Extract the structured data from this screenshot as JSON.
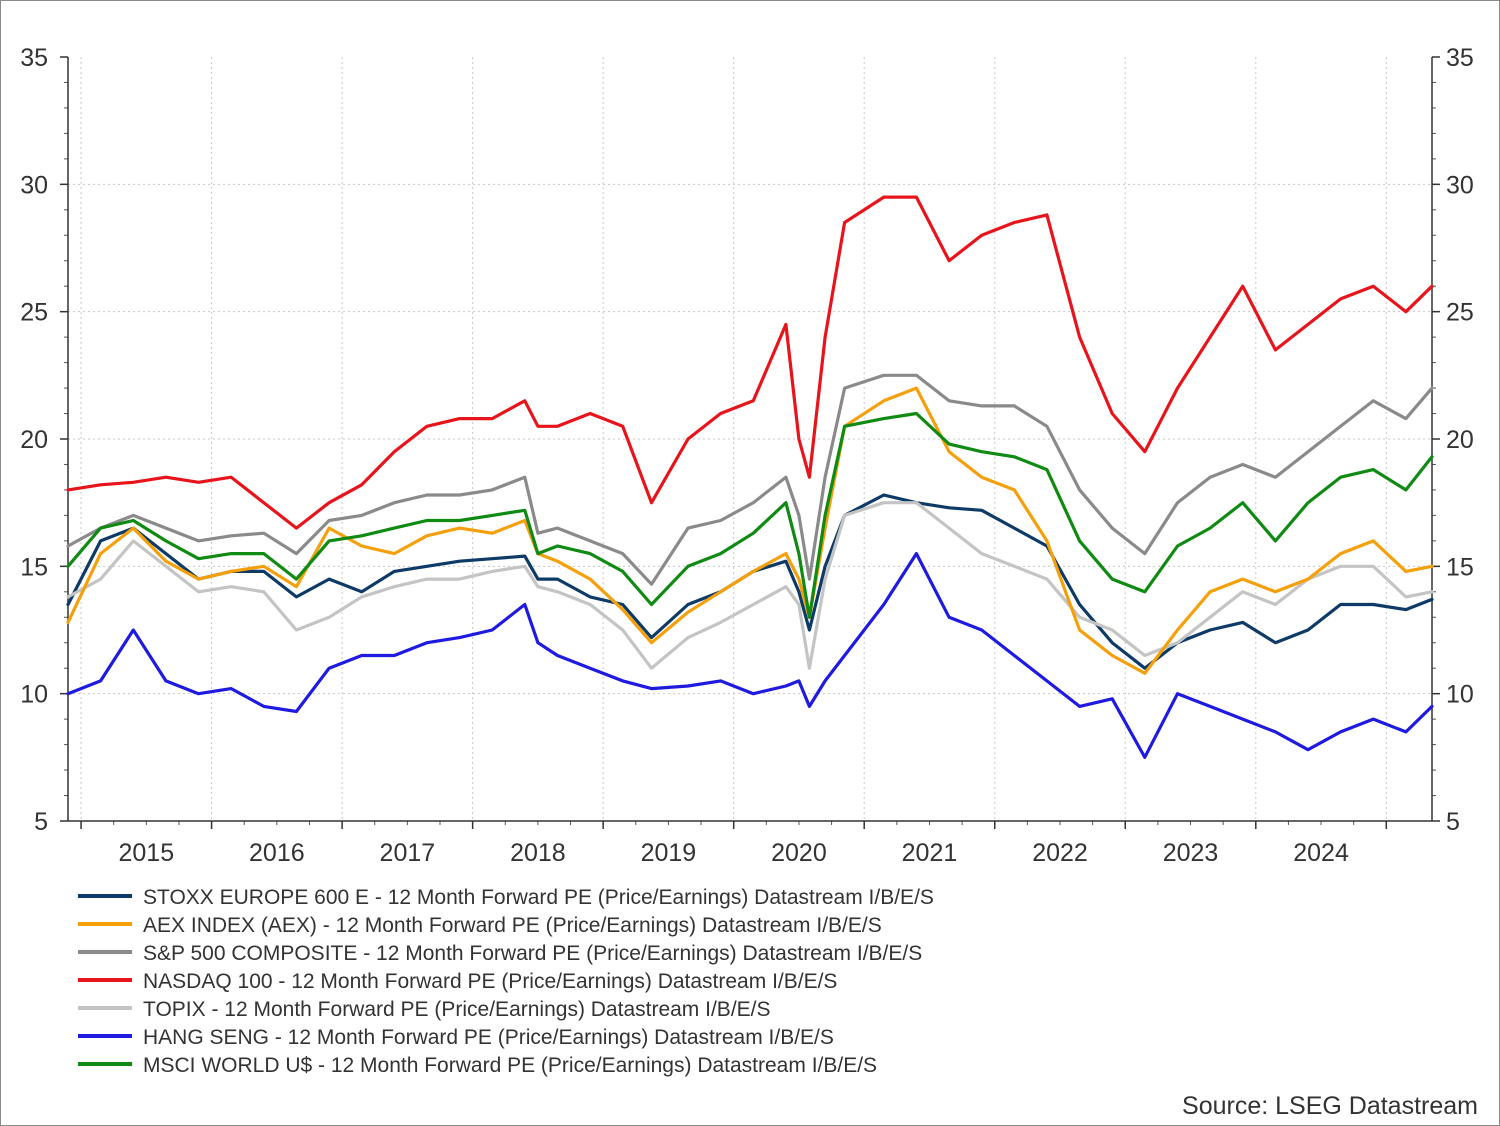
{
  "source_label": "Source: LSEG Datastream",
  "chart_data": {
    "type": "line",
    "title": "",
    "xlabel": "",
    "ylabel": "",
    "x_tick_labels": [
      "2015",
      "2016",
      "2017",
      "2018",
      "2019",
      "2020",
      "2021",
      "2022",
      "2023",
      "2024"
    ],
    "xlim": [
      2014.5,
      2024.95
    ],
    "ylim": [
      5,
      35
    ],
    "y_ticks": [
      5,
      10,
      15,
      20,
      25,
      30,
      35
    ],
    "y_tick_labels": [
      "5",
      "10",
      "15",
      "20",
      "25",
      "30",
      "35"
    ],
    "grid": true,
    "legend_position": "bottom",
    "dual_y_axis": true,
    "x": [
      2014.5,
      2014.75,
      2015.0,
      2015.25,
      2015.5,
      2015.75,
      2016.0,
      2016.25,
      2016.5,
      2016.75,
      2017.0,
      2017.25,
      2017.5,
      2017.75,
      2018.0,
      2018.1,
      2018.25,
      2018.5,
      2018.75,
      2018.97,
      2019.25,
      2019.5,
      2019.75,
      2020.0,
      2020.1,
      2020.18,
      2020.3,
      2020.45,
      2020.75,
      2021.0,
      2021.25,
      2021.5,
      2021.75,
      2022.0,
      2022.25,
      2022.5,
      2022.75,
      2023.0,
      2023.25,
      2023.5,
      2023.75,
      2024.0,
      2024.25,
      2024.5,
      2024.75,
      2024.95
    ],
    "series": [
      {
        "name": "STOXX EUROPE 600 E - 12 Month Forward PE (Price/Earnings) Datastream I/B/E/S",
        "color": "#0d3a66",
        "values": [
          13.5,
          16.0,
          16.5,
          15.5,
          14.5,
          14.8,
          14.8,
          13.8,
          14.5,
          14.0,
          14.8,
          15.0,
          15.2,
          15.3,
          15.4,
          14.5,
          14.5,
          13.8,
          13.5,
          12.2,
          13.5,
          14.0,
          14.8,
          15.2,
          14.0,
          12.5,
          15.0,
          17.0,
          17.8,
          17.5,
          17.3,
          17.2,
          16.5,
          15.8,
          13.5,
          12.0,
          11.0,
          12.0,
          12.5,
          12.8,
          12.0,
          12.5,
          13.5,
          13.5,
          13.3,
          13.7
        ]
      },
      {
        "name": "AEX INDEX (AEX) - 12 Month Forward PE (Price/Earnings) Datastream I/B/E/S",
        "color": "#f5a00a",
        "values": [
          12.8,
          15.5,
          16.5,
          15.2,
          14.5,
          14.8,
          15.0,
          14.2,
          16.5,
          15.8,
          15.5,
          16.2,
          16.5,
          16.3,
          16.8,
          15.5,
          15.2,
          14.5,
          13.3,
          12.0,
          13.2,
          14.0,
          14.8,
          15.5,
          14.5,
          13.0,
          16.5,
          20.5,
          21.5,
          22.0,
          19.5,
          18.5,
          18.0,
          16.0,
          12.5,
          11.5,
          10.8,
          12.5,
          14.0,
          14.5,
          14.0,
          14.5,
          15.5,
          16.0,
          14.8,
          15.0
        ]
      },
      {
        "name": "S&P 500 COMPOSITE - 12 Month Forward PE (Price/Earnings) Datastream I/B/E/S",
        "color": "#8a8a8a",
        "values": [
          15.8,
          16.5,
          17.0,
          16.5,
          16.0,
          16.2,
          16.3,
          15.5,
          16.8,
          17.0,
          17.5,
          17.8,
          17.8,
          18.0,
          18.5,
          16.3,
          16.5,
          16.0,
          15.5,
          14.3,
          16.5,
          16.8,
          17.5,
          18.5,
          17.0,
          14.5,
          18.5,
          22.0,
          22.5,
          22.5,
          21.5,
          21.3,
          21.3,
          20.5,
          18.0,
          16.5,
          15.5,
          17.5,
          18.5,
          19.0,
          18.5,
          19.5,
          20.5,
          21.5,
          20.8,
          22.0
        ]
      },
      {
        "name": "NASDAQ 100 - 12 Month Forward PE (Price/Earnings) Datastream I/B/E/S",
        "color": "#e8141c",
        "values": [
          18.0,
          18.2,
          18.3,
          18.5,
          18.3,
          18.5,
          17.5,
          16.5,
          17.5,
          18.2,
          19.5,
          20.5,
          20.8,
          20.8,
          21.5,
          20.5,
          20.5,
          21.0,
          20.5,
          17.5,
          20.0,
          21.0,
          21.5,
          24.5,
          20.0,
          18.5,
          24.0,
          28.5,
          29.5,
          29.5,
          27.0,
          28.0,
          28.5,
          28.8,
          24.0,
          21.0,
          19.5,
          22.0,
          24.0,
          26.0,
          23.5,
          24.5,
          25.5,
          26.0,
          25.0,
          26.0
        ]
      },
      {
        "name": "TOPIX - 12 Month Forward PE (Price/Earnings) Datastream I/B/E/S",
        "color": "#c4c4c4",
        "values": [
          13.8,
          14.5,
          16.0,
          15.0,
          14.0,
          14.2,
          14.0,
          12.5,
          13.0,
          13.8,
          14.2,
          14.5,
          14.5,
          14.8,
          15.0,
          14.2,
          14.0,
          13.5,
          12.5,
          11.0,
          12.2,
          12.8,
          13.5,
          14.2,
          13.5,
          11.0,
          14.5,
          17.0,
          17.5,
          17.5,
          16.5,
          15.5,
          15.0,
          14.5,
          13.0,
          12.5,
          11.5,
          12.0,
          13.0,
          14.0,
          13.5,
          14.5,
          15.0,
          15.0,
          13.8,
          14.0
        ]
      },
      {
        "name": "HANG SENG - 12 Month Forward PE (Price/Earnings) Datastream I/B/E/S",
        "color": "#1f1ae0",
        "values": [
          10.0,
          10.5,
          12.5,
          10.5,
          10.0,
          10.2,
          9.5,
          9.3,
          11.0,
          11.5,
          11.5,
          12.0,
          12.2,
          12.5,
          13.5,
          12.0,
          11.5,
          11.0,
          10.5,
          10.2,
          10.3,
          10.5,
          10.0,
          10.3,
          10.5,
          9.5,
          10.5,
          11.5,
          13.5,
          15.5,
          13.0,
          12.5,
          11.5,
          10.5,
          9.5,
          9.8,
          7.5,
          10.0,
          9.5,
          9.0,
          8.5,
          7.8,
          8.5,
          9.0,
          8.5,
          9.5
        ]
      },
      {
        "name": "MSCI WORLD U$ - 12 Month Forward PE (Price/Earnings) Datastream I/B/E/S",
        "color": "#0f8a12",
        "values": [
          15.0,
          16.5,
          16.8,
          16.0,
          15.3,
          15.5,
          15.5,
          14.5,
          16.0,
          16.2,
          16.5,
          16.8,
          16.8,
          17.0,
          17.2,
          15.5,
          15.8,
          15.5,
          14.8,
          13.5,
          15.0,
          15.5,
          16.3,
          17.5,
          15.5,
          13.0,
          17.0,
          20.5,
          20.8,
          21.0,
          19.8,
          19.5,
          19.3,
          18.8,
          16.0,
          14.5,
          14.0,
          15.8,
          16.5,
          17.5,
          16.0,
          17.5,
          18.5,
          18.8,
          18.0,
          19.3
        ]
      }
    ]
  }
}
